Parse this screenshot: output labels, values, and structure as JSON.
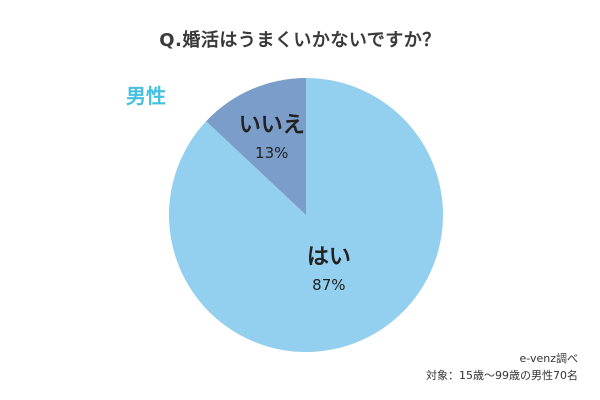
{
  "title": "Q.婚活はうまくいかないですか？",
  "gender_label": "男性",
  "source": {
    "credit": "e-venz調べ",
    "target": "対象：15歳〜99歳の男性70名"
  },
  "colors": {
    "gender_label": "#45c0e0",
    "slice_yes": "#93cfee",
    "slice_no": "#7b9dc9"
  },
  "chart_data": {
    "type": "pie",
    "categories": [
      "はい",
      "いいえ"
    ],
    "values": [
      87,
      13
    ],
    "labels": [
      "87%",
      "13%"
    ],
    "start_angle_deg": 0,
    "direction": "clockwise"
  }
}
